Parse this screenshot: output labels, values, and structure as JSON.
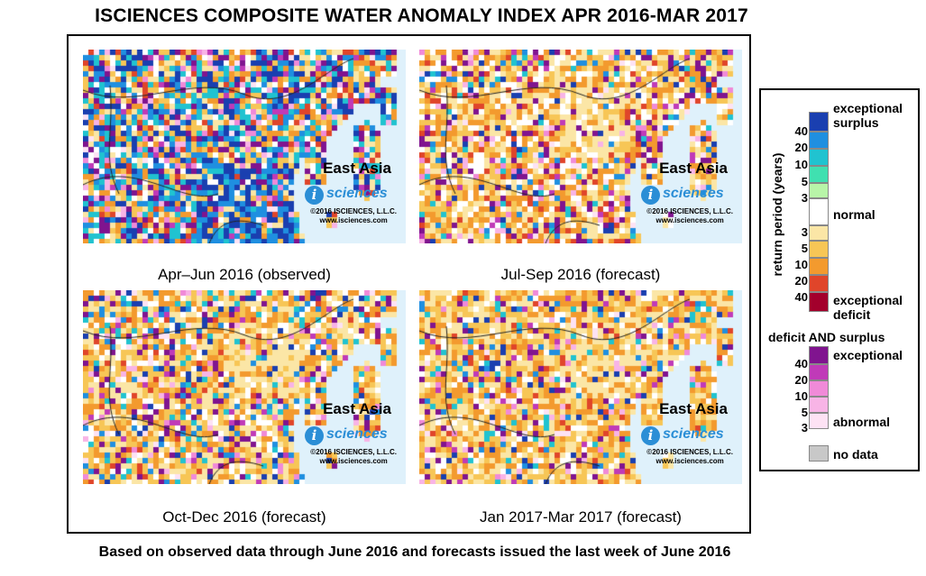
{
  "title": "ISCIENCES COMPOSITE WATER ANOMALY INDEX APR 2016-MAR 2017",
  "footer": "Based on observed data through June 2016 and forecasts issued the last week of June 2016",
  "panels": [
    {
      "caption": "Apr–Jun 2016 (observed)",
      "region": "East Asia",
      "logo_letter": "i",
      "logo_word": "sciences",
      "copyright": "©2016  ISCIENCES, L.L.C.",
      "url": "www.isciences.com"
    },
    {
      "caption": "Jul-Sep 2016 (forecast)",
      "region": "East Asia",
      "logo_letter": "i",
      "logo_word": "sciences",
      "copyright": "©2016  ISCIENCES, L.L.C.",
      "url": "www.isciences.com"
    },
    {
      "caption": "Oct-Dec 2016 (forecast)",
      "region": "East Asia",
      "logo_letter": "i",
      "logo_word": "sciences",
      "copyright": "©2016  ISCIENCES, L.L.C.",
      "url": "www.isciences.com"
    },
    {
      "caption": "Jan 2017-Mar 2017 (forecast)",
      "region": "East Asia",
      "logo_letter": "i",
      "logo_word": "sciences",
      "copyright": "©2016  ISCIENCES, L.L.C.",
      "url": "www.isciences.com"
    }
  ],
  "legend": {
    "axis_label": "return period (years)",
    "surplus_label_1": "exceptional",
    "surplus_label_2": "surplus",
    "normal_label": "normal",
    "deficit_label_1": "exceptional",
    "deficit_label_2": "deficit",
    "both_heading": "deficit AND surplus",
    "both_exceptional": "exceptional",
    "both_abnormal": "abnormal",
    "no_data_label": "no data",
    "surplus_ticks": [
      "40",
      "20",
      "10",
      "5",
      "3"
    ],
    "deficit_ticks": [
      "3",
      "5",
      "10",
      "20",
      "40"
    ],
    "both_ticks": [
      "40",
      "20",
      "10",
      "5",
      "3"
    ],
    "surplus_colors": [
      "#1a3fb0",
      "#1f8fe0",
      "#20c3d0",
      "#40e0b0",
      "#b8f5a8"
    ],
    "normal_color": "#ffffff",
    "deficit_colors": [
      "#fbe6a6",
      "#f7c656",
      "#f39a2e",
      "#e0452a",
      "#a3002c"
    ],
    "both_colors": [
      "#80148f",
      "#c03ab8",
      "#f08ad8",
      "#f8b4e6",
      "#fde2f4"
    ],
    "no_data_color": "#c8c8c8"
  }
}
